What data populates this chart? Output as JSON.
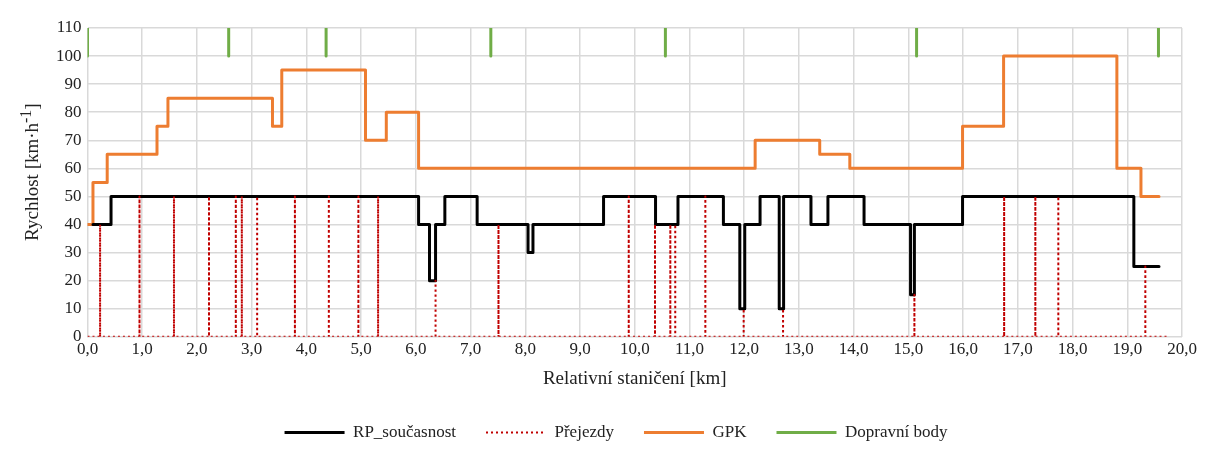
{
  "chart_data": {
    "type": "line",
    "xlabel": "Relativní staničení [km]",
    "ylabel": "Rychlost [km·h$^{-1}$]",
    "xlim": [
      0,
      20
    ],
    "ylim": [
      0,
      110
    ],
    "xticks": [
      {
        "value": 0,
        "label": "0,0"
      },
      {
        "value": 1,
        "label": "1,0"
      },
      {
        "value": 2,
        "label": "2,0"
      },
      {
        "value": 3,
        "label": "3,0"
      },
      {
        "value": 4,
        "label": "4,0"
      },
      {
        "value": 5,
        "label": "5,0"
      },
      {
        "value": 6,
        "label": "6,0"
      },
      {
        "value": 7,
        "label": "7,0"
      },
      {
        "value": 8,
        "label": "8,0"
      },
      {
        "value": 9,
        "label": "9,0"
      },
      {
        "value": 10,
        "label": "10,0"
      },
      {
        "value": 11,
        "label": "11,0"
      },
      {
        "value": 12,
        "label": "12,0"
      },
      {
        "value": 13,
        "label": "13,0"
      },
      {
        "value": 14,
        "label": "14,0"
      },
      {
        "value": 15,
        "label": "15,0"
      },
      {
        "value": 16,
        "label": "16,0"
      },
      {
        "value": 17,
        "label": "17,0"
      },
      {
        "value": 18,
        "label": "18,0"
      },
      {
        "value": 19,
        "label": "19,0"
      },
      {
        "value": 20,
        "label": "20,0"
      }
    ],
    "yticks": [
      0,
      10,
      20,
      30,
      40,
      50,
      60,
      70,
      80,
      90,
      100,
      110
    ],
    "grid": true,
    "legend": "bottom",
    "marker": "none",
    "series": [
      {
        "name": "RP_současnost",
        "color": "#000000",
        "line_style": "solid",
        "x": [
          0.1,
          0.43,
          0.43,
          6.05,
          6.05,
          6.25,
          6.25,
          6.36,
          6.36,
          6.53,
          6.53,
          7.12,
          7.12,
          8.05,
          8.05,
          8.14,
          8.14,
          9.43,
          9.43,
          10.38,
          10.38,
          10.79,
          10.79,
          11.62,
          11.62,
          11.92,
          11.92,
          12.01,
          12.01,
          12.29,
          12.29,
          12.64,
          12.64,
          12.72,
          12.72,
          13.22,
          13.22,
          13.53,
          13.53,
          14.19,
          14.19,
          15.04,
          15.04,
          15.11,
          15.11,
          15.99,
          15.99,
          19.12,
          19.12,
          19.58
        ],
        "values": [
          40,
          40,
          50,
          50,
          40,
          40,
          20,
          20,
          40,
          40,
          50,
          50,
          40,
          40,
          30,
          30,
          40,
          40,
          50,
          50,
          40,
          40,
          50,
          50,
          40,
          40,
          10,
          10,
          40,
          40,
          50,
          50,
          10,
          10,
          50,
          50,
          40,
          40,
          50,
          50,
          40,
          40,
          15,
          15,
          40,
          40,
          50,
          50,
          25,
          25
        ]
      },
      {
        "name": "Přejezdy",
        "color": "#c00000",
        "line_style": "dotted",
        "x": [
          0,
          0.23,
          0.23,
          0.23,
          0.95,
          0.95,
          0.95,
          1.58,
          1.58,
          1.58,
          2.22,
          2.22,
          2.22,
          2.71,
          2.71,
          2.71,
          2.82,
          2.82,
          2.82,
          3.1,
          3.1,
          3.1,
          3.79,
          3.79,
          3.79,
          4.41,
          4.41,
          4.41,
          4.95,
          4.95,
          4.95,
          5.31,
          5.31,
          5.31,
          6.36,
          6.36,
          6.36,
          7.51,
          7.51,
          7.51,
          9.89,
          9.89,
          9.89,
          10.37,
          10.37,
          10.37,
          10.65,
          10.65,
          10.65,
          10.74,
          10.74,
          10.74,
          11.29,
          11.29,
          11.29,
          11.99,
          11.99,
          11.99,
          12.71,
          12.71,
          12.71,
          15.11,
          15.11,
          15.11,
          16.75,
          16.75,
          16.75,
          17.32,
          17.32,
          17.32,
          17.74,
          17.74,
          17.74,
          19.33,
          19.33,
          19.33,
          19.72
        ],
        "values": [
          0,
          0,
          40,
          0,
          0,
          50,
          0,
          0,
          50,
          0,
          0,
          50,
          0,
          0,
          50,
          0,
          0,
          50,
          0,
          0,
          50,
          0,
          0,
          50,
          0,
          0,
          50,
          0,
          0,
          50,
          0,
          0,
          50,
          0,
          0,
          20,
          0,
          0,
          40,
          0,
          0,
          50,
          0,
          0,
          40,
          0,
          0,
          40,
          0,
          0,
          40,
          0,
          0,
          50,
          0,
          0,
          10,
          0,
          0,
          10,
          0,
          0,
          15,
          0,
          0,
          50,
          0,
          0,
          50,
          0,
          0,
          50,
          0,
          0,
          25,
          0,
          0
        ]
      },
      {
        "name": "GPK",
        "color": "#ed7d31",
        "line_style": "solid",
        "x": [
          0,
          0.1,
          0.1,
          0.36,
          0.36,
          1.27,
          1.27,
          1.47,
          1.47,
          3.38,
          3.38,
          3.55,
          3.55,
          5.08,
          5.08,
          5.46,
          5.46,
          6.05,
          6.05,
          12.2,
          12.2,
          13.38,
          13.38,
          13.93,
          13.93,
          15.99,
          15.99,
          16.74,
          16.74,
          18.81,
          18.81,
          19.25,
          19.25,
          19.58
        ],
        "values": [
          40,
          40,
          55,
          55,
          65,
          65,
          75,
          75,
          85,
          85,
          75,
          75,
          95,
          95,
          70,
          70,
          80,
          80,
          60,
          60,
          70,
          70,
          65,
          65,
          60,
          60,
          75,
          75,
          100,
          100,
          60,
          60,
          50,
          50
        ]
      },
      {
        "name": "Dopravní body",
        "color": "#70ad47",
        "line_style": "solid",
        "x": [
          0,
          0,
          null,
          2.58,
          2.58,
          null,
          4.36,
          4.36,
          null,
          7.37,
          7.37,
          null,
          10.56,
          10.56,
          null,
          15.15,
          15.15,
          null,
          19.57,
          19.57
        ],
        "values": [
          100,
          110,
          null,
          100,
          110,
          null,
          100,
          110,
          null,
          100,
          110,
          null,
          100,
          110,
          null,
          100,
          110,
          null,
          100,
          110
        ]
      }
    ]
  }
}
